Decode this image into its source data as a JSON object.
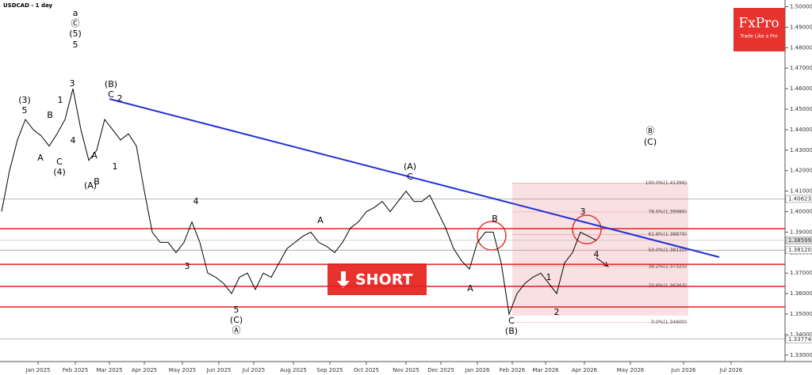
{
  "title": "USDCAD - 1 day",
  "logo": {
    "brand": "FxPro",
    "tagline": "Trade Like a Pro"
  },
  "button": "SHORT",
  "chart_data": {
    "type": "line",
    "color": "#000000",
    "values": [
      1.4,
      1.42,
      1.435,
      1.445,
      1.44,
      1.437,
      1.432,
      1.438,
      1.445,
      1.46,
      1.44,
      1.425,
      1.43,
      1.445,
      1.44,
      1.435,
      1.438,
      1.432,
      1.41,
      1.39,
      1.385,
      1.385,
      1.38,
      1.385,
      1.395,
      1.385,
      1.37,
      1.368,
      1.365,
      1.36,
      1.368,
      1.37,
      1.362,
      1.37,
      1.368,
      1.375,
      1.382,
      1.385,
      1.388,
      1.39,
      1.385,
      1.383,
      1.38,
      1.385,
      1.392,
      1.395,
      1.4,
      1.402,
      1.405,
      1.4,
      1.405,
      1.41,
      1.405,
      1.405,
      1.408,
      1.4,
      1.392,
      1.382,
      1.376,
      1.372,
      1.385,
      1.39,
      1.39,
      1.375,
      1.35,
      1.36,
      1.365,
      1.368,
      1.37,
      1.365,
      1.36,
      1.375,
      1.38,
      1.39,
      1.388,
      1.386
    ],
    "x_labels": [
      "Jan 2025",
      "Feb 2025",
      "Mar 2025",
      "Apr 2025",
      "May 2025",
      "Jun 2025",
      "Jul 2025",
      "Aug 2025",
      "Sep 2025",
      "Oct 2025",
      "Nov 2025",
      "Dec 2025",
      "Jan 2026",
      "Feb 2026",
      "Mar 2026",
      "Apr 2026",
      "May 2026",
      "Jun 2026",
      "Jul 2026"
    ],
    "ylim": [
      1.32761,
      1.50328
    ],
    "yticks": [
      {
        "value": 1.33,
        "label": "1.33000"
      },
      {
        "value": 1.34,
        "label": "1.34000"
      },
      {
        "value": 1.35,
        "label": "1.35000"
      },
      {
        "value": 1.36,
        "label": "1.36000"
      },
      {
        "value": 1.37,
        "label": "1.37000"
      },
      {
        "value": 1.38,
        "label": "1.38000"
      },
      {
        "value": 1.39,
        "label": "1.39000"
      },
      {
        "value": 1.4,
        "label": "1.40000"
      },
      {
        "value": 1.41,
        "label": "1.41000"
      },
      {
        "value": 1.42,
        "label": "1.42000"
      },
      {
        "value": 1.43,
        "label": "1.43000"
      },
      {
        "value": 1.44,
        "label": "1.44000"
      },
      {
        "value": 1.45,
        "label": "1.45000"
      },
      {
        "value": 1.46,
        "label": "1.46000"
      },
      {
        "value": 1.47,
        "label": "1.47000"
      },
      {
        "value": 1.48,
        "label": "1.48000"
      },
      {
        "value": 1.49,
        "label": "1.49000"
      },
      {
        "value": 1.5,
        "label": "1.50000"
      }
    ],
    "price_labels": [
      {
        "value": 1.40623,
        "label": "1.40623"
      },
      {
        "value": 1.38599,
        "label": "1.38599"
      },
      {
        "value": 1.3812,
        "label": "1.38120"
      },
      {
        "value": 1.33774,
        "label": "1.33774"
      }
    ],
    "fib_levels": [
      {
        "value": 1.41396,
        "label": "100.0%(1.41396)"
      },
      {
        "value": 1.39986,
        "label": "78.6%(1.39986)"
      },
      {
        "value": 1.38879,
        "label": "61.8%(1.38879)"
      },
      {
        "value": 1.3811,
        "label": "50.0%(1.38110)"
      },
      {
        "value": 1.37325,
        "label": "38.2%(1.37325)"
      },
      {
        "value": 1.36363,
        "label": "23.6%(1.36363)"
      },
      {
        "value": 1.346,
        "label": "0.0%(1.34600)"
      }
    ],
    "resistance_levels": [
      1.3917,
      1.3743,
      1.3635,
      1.3535
    ],
    "trendline": [
      1.455,
      1.3778
    ],
    "annotations": [
      "a",
      "Ⓒ",
      "(5)",
      "5",
      "3",
      "(B)",
      "C",
      "2",
      "(3)",
      "5",
      "1",
      "B",
      "4",
      "A",
      "C",
      "(4)",
      "1",
      "A",
      "(A)",
      "B",
      "4",
      "3",
      "A",
      "5",
      "(C)",
      "Ⓐ",
      "(A)",
      "C",
      "B",
      "A",
      "C",
      "(B)",
      "1",
      "2",
      "3",
      "4",
      "Ⓑ",
      "(C)"
    ]
  }
}
